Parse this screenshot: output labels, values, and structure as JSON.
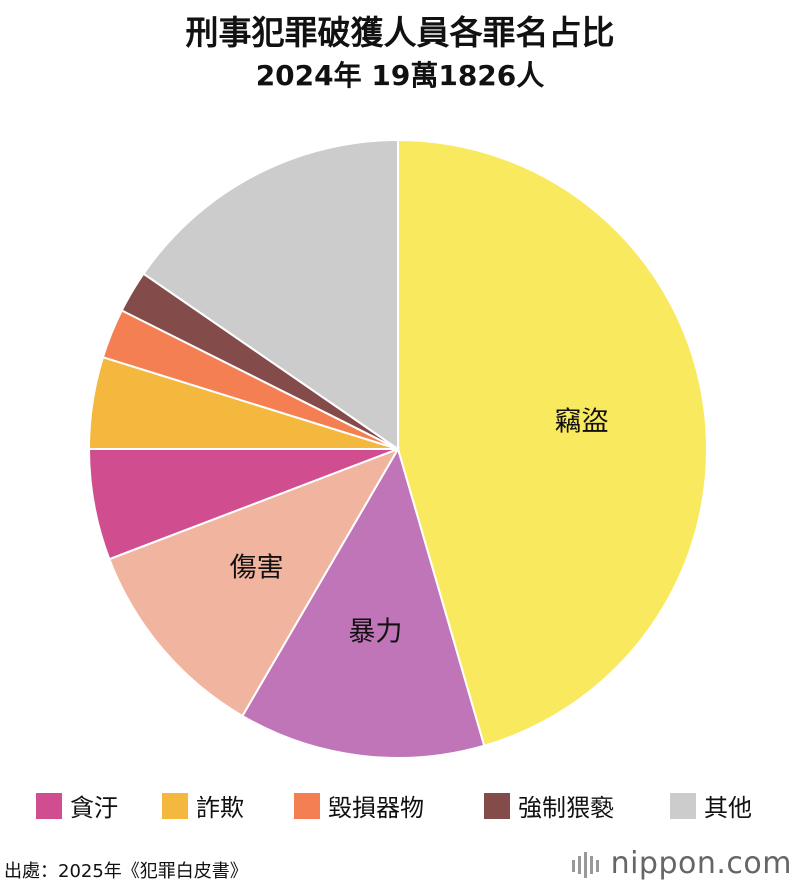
{
  "title": "刑事犯罪破獲人員各罪名占比",
  "subtitle": "2024年 19萬1826人",
  "chart_data": {
    "type": "pie",
    "start_angle_deg": 0,
    "direction": "clockwise",
    "slices": [
      {
        "label": "竊盜",
        "value": 45.5,
        "color": "#f9e95e",
        "show_label": true
      },
      {
        "label": "暴力",
        "value": 12.9,
        "color": "#bf75b8",
        "show_label": true
      },
      {
        "label": "傷害",
        "value": 10.8,
        "color": "#f1b49f",
        "show_label": true
      },
      {
        "label": "貪汙",
        "value": 5.8,
        "color": "#d04e8f",
        "show_label": false
      },
      {
        "label": "詐欺",
        "value": 4.8,
        "color": "#f5b83e",
        "show_label": false
      },
      {
        "label": "毀損器物",
        "value": 2.6,
        "color": "#f47f53",
        "show_label": false
      },
      {
        "label": "強制猥褻",
        "value": 2.2,
        "color": "#844b4b",
        "show_label": false
      },
      {
        "label": "其他",
        "value": 15.4,
        "color": "#cccccc",
        "show_label": false
      }
    ],
    "legend": [
      "貪汙",
      "詐欺",
      "毀損器物",
      "強制猥褻",
      "其他"
    ]
  },
  "legend_colors": [
    "#d04e8f",
    "#f5b83e",
    "#f47f53",
    "#844b4b",
    "#cccccc"
  ],
  "source": "出處：2025年《犯罪白皮書》",
  "brand": "nippon.com"
}
